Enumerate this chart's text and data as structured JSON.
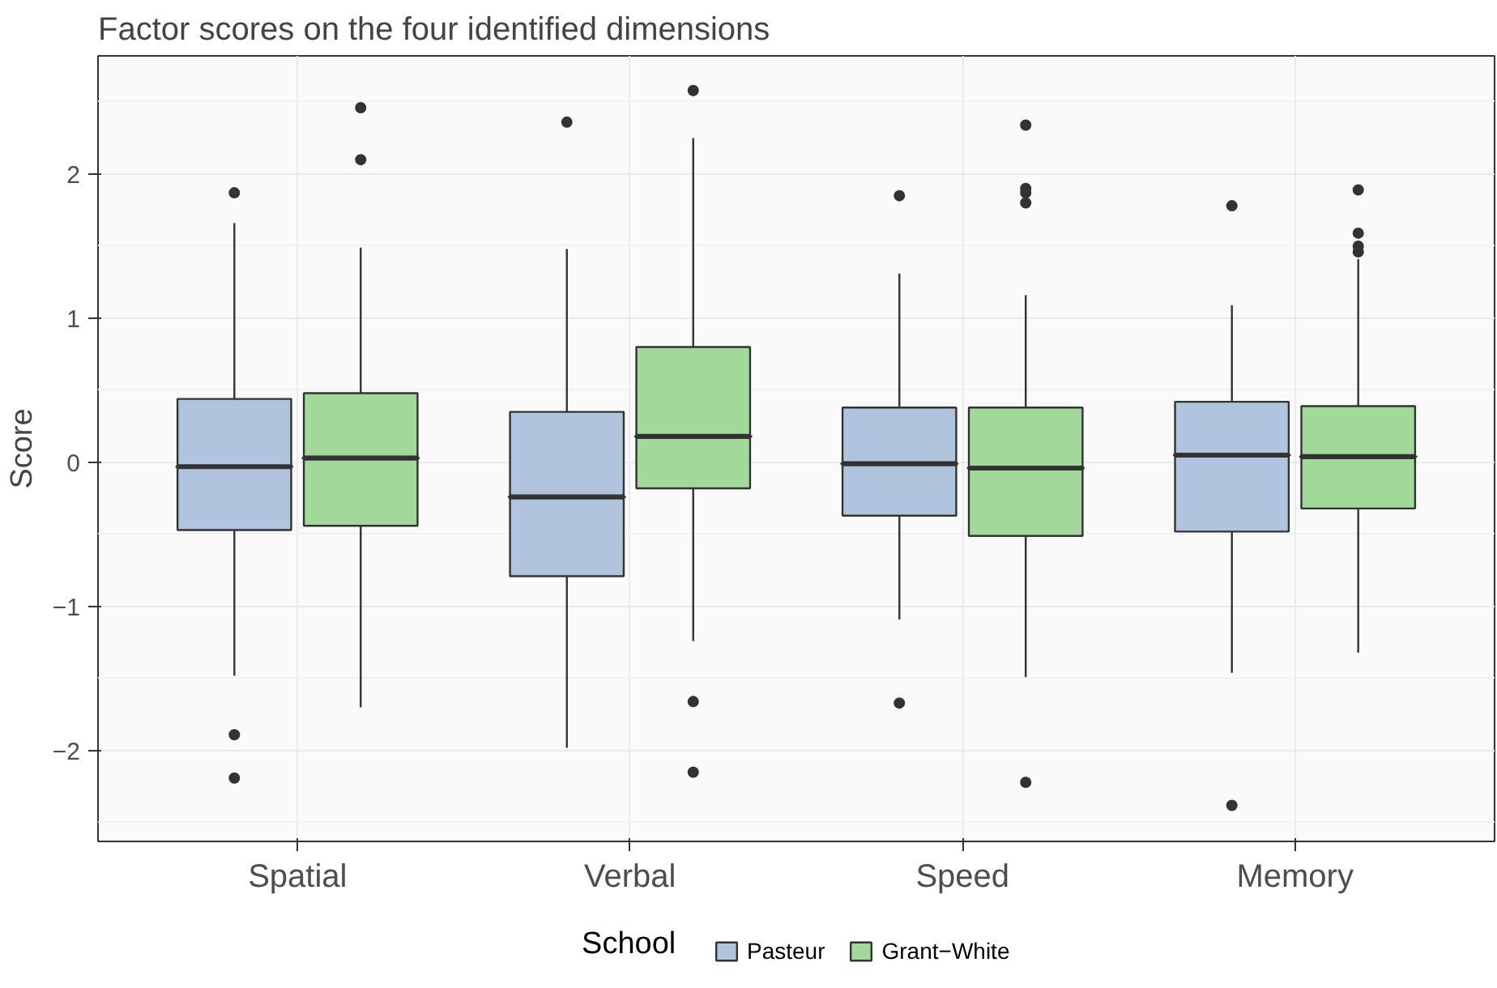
{
  "chart_data": {
    "type": "box",
    "title": "Factor scores on the four identified dimensions",
    "ylabel": "Score",
    "legend_title": "School",
    "categories": [
      "Spatial",
      "Verbal",
      "Speed",
      "Memory"
    ],
    "series": [
      {
        "name": "Pasteur",
        "color": "#b0c4de",
        "boxes": [
          {
            "low": -1.48,
            "q1": -0.47,
            "median": -0.03,
            "q3": 0.44,
            "high": 1.66,
            "outliers": [
              1.87,
              -1.89,
              -2.19
            ]
          },
          {
            "low": -1.98,
            "q1": -0.79,
            "median": -0.24,
            "q3": 0.35,
            "high": 1.48,
            "outliers": [
              2.36
            ]
          },
          {
            "low": -1.09,
            "q1": -0.37,
            "median": -0.01,
            "q3": 0.38,
            "high": 1.31,
            "outliers": [
              1.85,
              -1.67
            ]
          },
          {
            "low": -1.46,
            "q1": -0.48,
            "median": 0.05,
            "q3": 0.42,
            "high": 1.09,
            "outliers": [
              1.78,
              -2.38
            ]
          }
        ]
      },
      {
        "name": "Grant−White",
        "color": "#a2d99a",
        "boxes": [
          {
            "low": -1.7,
            "q1": -0.44,
            "median": 0.03,
            "q3": 0.48,
            "high": 1.49,
            "outliers": [
              2.46,
              2.1
            ]
          },
          {
            "low": -1.24,
            "q1": -0.18,
            "median": 0.18,
            "q3": 0.8,
            "high": 2.25,
            "outliers": [
              2.58,
              -1.66,
              -2.15
            ]
          },
          {
            "low": -1.49,
            "q1": -0.51,
            "median": -0.04,
            "q3": 0.38,
            "high": 1.16,
            "outliers": [
              2.34,
              1.9,
              1.87,
              1.8,
              -2.22
            ]
          },
          {
            "low": -1.32,
            "q1": -0.32,
            "median": 0.04,
            "q3": 0.39,
            "high": 1.41,
            "outliers": [
              1.89,
              1.59,
              1.5,
              1.46
            ]
          }
        ]
      }
    ],
    "ylim": [
      -2.63,
      2.82
    ],
    "yticks": [
      {
        "value": -2,
        "label": "−2"
      },
      {
        "value": -1,
        "label": "−1"
      },
      0,
      1,
      2
    ],
    "grid": true,
    "legend": "bottom"
  }
}
